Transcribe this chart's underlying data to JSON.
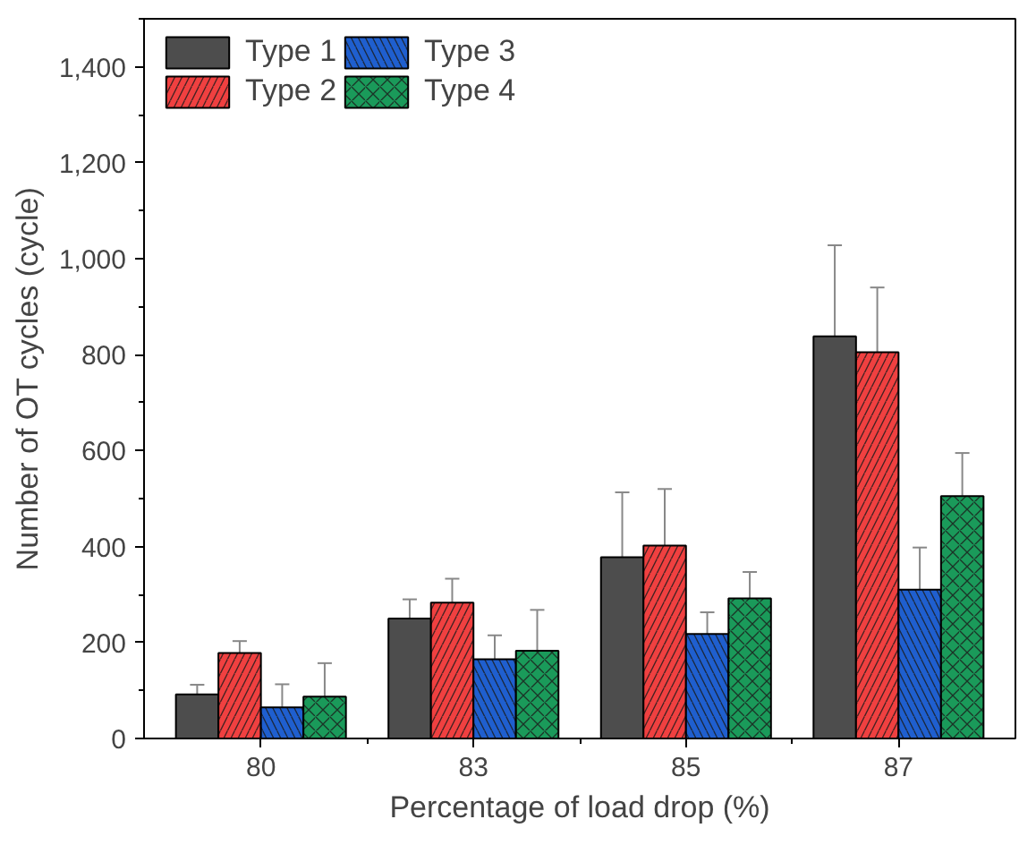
{
  "chart_data": {
    "type": "bar",
    "xlabel": "Percentage of load drop (%)",
    "ylabel": "Number of OT cycles (cycle)",
    "categories": [
      "80",
      "83",
      "85",
      "87"
    ],
    "series": [
      {
        "name": "Type 1",
        "color": "#4d4d4d",
        "values": [
          92,
          250,
          378,
          838
        ],
        "errors": [
          20,
          40,
          135,
          190
        ]
      },
      {
        "name": "Type 2",
        "color": "#f04040",
        "values": [
          178,
          283,
          402,
          805
        ],
        "errors": [
          25,
          50,
          118,
          135
        ]
      },
      {
        "name": "Type 3",
        "color": "#1f5fcf",
        "values": [
          65,
          165,
          218,
          310
        ],
        "errors": [
          48,
          50,
          45,
          88
        ]
      },
      {
        "name": "Type 4",
        "color": "#1a9a5a",
        "values": [
          87,
          183,
          292,
          505
        ],
        "errors": [
          70,
          85,
          55,
          90
        ]
      }
    ],
    "ylim": [
      0,
      1500
    ],
    "yticks": [
      0,
      {
        "value": 200,
        "label": "200"
      },
      {
        "value": 400,
        "label": "400"
      },
      {
        "value": 600,
        "label": "600"
      },
      {
        "value": 800,
        "label": "800"
      },
      {
        "value": 1000,
        "label": "1,000"
      },
      {
        "value": 1200,
        "label": "1,200"
      },
      {
        "value": 1400,
        "label": "1,400"
      }
    ],
    "grid": false,
    "legend": "top left"
  }
}
